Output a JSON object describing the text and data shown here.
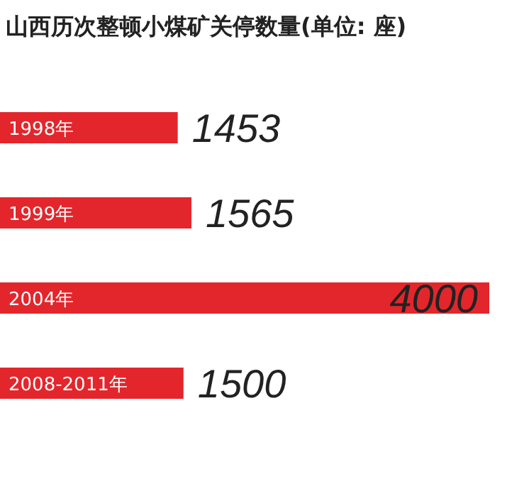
{
  "chart_data": {
    "type": "bar",
    "orientation": "horizontal",
    "title": "山西历次整顿小煤矿关停数量(单位: 座)",
    "categories": [
      "1998年",
      "1999年",
      "2004年",
      "2008-2011年"
    ],
    "values": [
      1453,
      1565,
      4000,
      1500
    ],
    "color": "#e3262c",
    "data_labels": true
  }
}
